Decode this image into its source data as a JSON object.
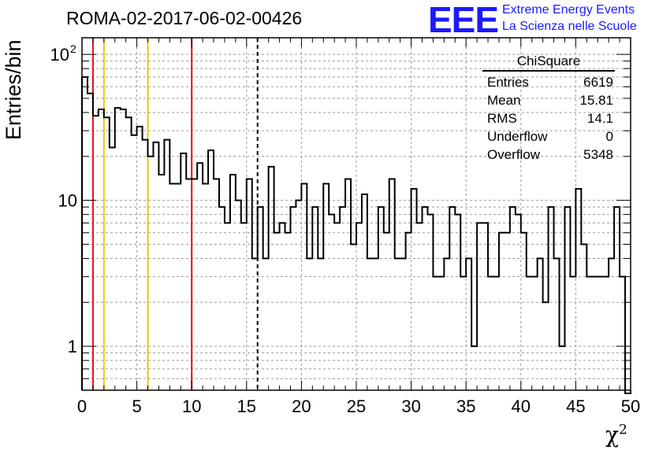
{
  "title": "ROMA-02-2017-06-02-00426",
  "logo": {
    "mark": "EEE",
    "line1": "Extreme Energy Events",
    "line2": "La Scienza nelle Scuole",
    "color": "#1a1aff"
  },
  "stats": {
    "header": "ChiSquare",
    "rows": [
      {
        "label": "Entries",
        "value": "6619"
      },
      {
        "label": "Mean",
        "value": "15.81"
      },
      {
        "label": "RMS",
        "value": "14.1"
      },
      {
        "label": "Underflow",
        "value": "0"
      },
      {
        "label": "Overflow",
        "value": "5348"
      }
    ]
  },
  "chart_data": {
    "type": "histogram",
    "title": "ROMA-02-2017-06-02-00426",
    "xlabel": "χ",
    "xlabel_sup": "2",
    "ylabel": "Entries/bin",
    "xlim": [
      0,
      50
    ],
    "ylim": [
      0.5,
      130
    ],
    "yscale": "log",
    "grid": true,
    "bin_width": 0.5,
    "xticks": [
      0,
      5,
      10,
      15,
      20,
      25,
      30,
      35,
      40,
      45,
      50
    ],
    "yticks": [
      {
        "value": 1,
        "label": "1"
      },
      {
        "value": 10,
        "label": "10"
      },
      {
        "value": 100,
        "label": "10",
        "sup": "2"
      }
    ],
    "values": [
      70,
      54,
      38,
      42,
      37,
      23,
      43,
      42,
      37,
      28,
      32,
      26,
      20,
      25,
      15,
      26,
      13,
      13,
      21,
      14,
      14,
      18,
      13,
      22,
      14,
      9,
      7,
      15,
      10,
      7,
      14,
      4,
      9,
      4,
      17,
      6,
      7,
      6,
      9,
      10,
      13,
      4,
      9,
      4,
      13,
      8,
      7,
      9,
      14,
      5,
      7,
      11,
      4,
      4,
      9,
      6,
      14,
      4,
      4,
      6,
      12,
      7,
      9,
      8,
      3,
      3,
      4,
      9,
      8,
      3,
      4,
      1,
      7,
      7,
      3,
      3,
      6,
      6,
      9,
      8,
      6,
      3,
      3,
      4,
      2,
      9,
      4,
      1,
      9,
      3,
      12,
      5,
      3,
      3,
      3,
      3,
      4,
      9,
      3,
      0.45
    ],
    "vlines": [
      {
        "x": 1,
        "color": "#e01010",
        "dash": false
      },
      {
        "x": 2,
        "color": "#f0c800",
        "dash": false
      },
      {
        "x": 6,
        "color": "#f0c800",
        "dash": false
      },
      {
        "x": 10,
        "color": "#e01010",
        "dash": false
      },
      {
        "x": 16,
        "color": "#000000",
        "dash": true
      }
    ]
  }
}
